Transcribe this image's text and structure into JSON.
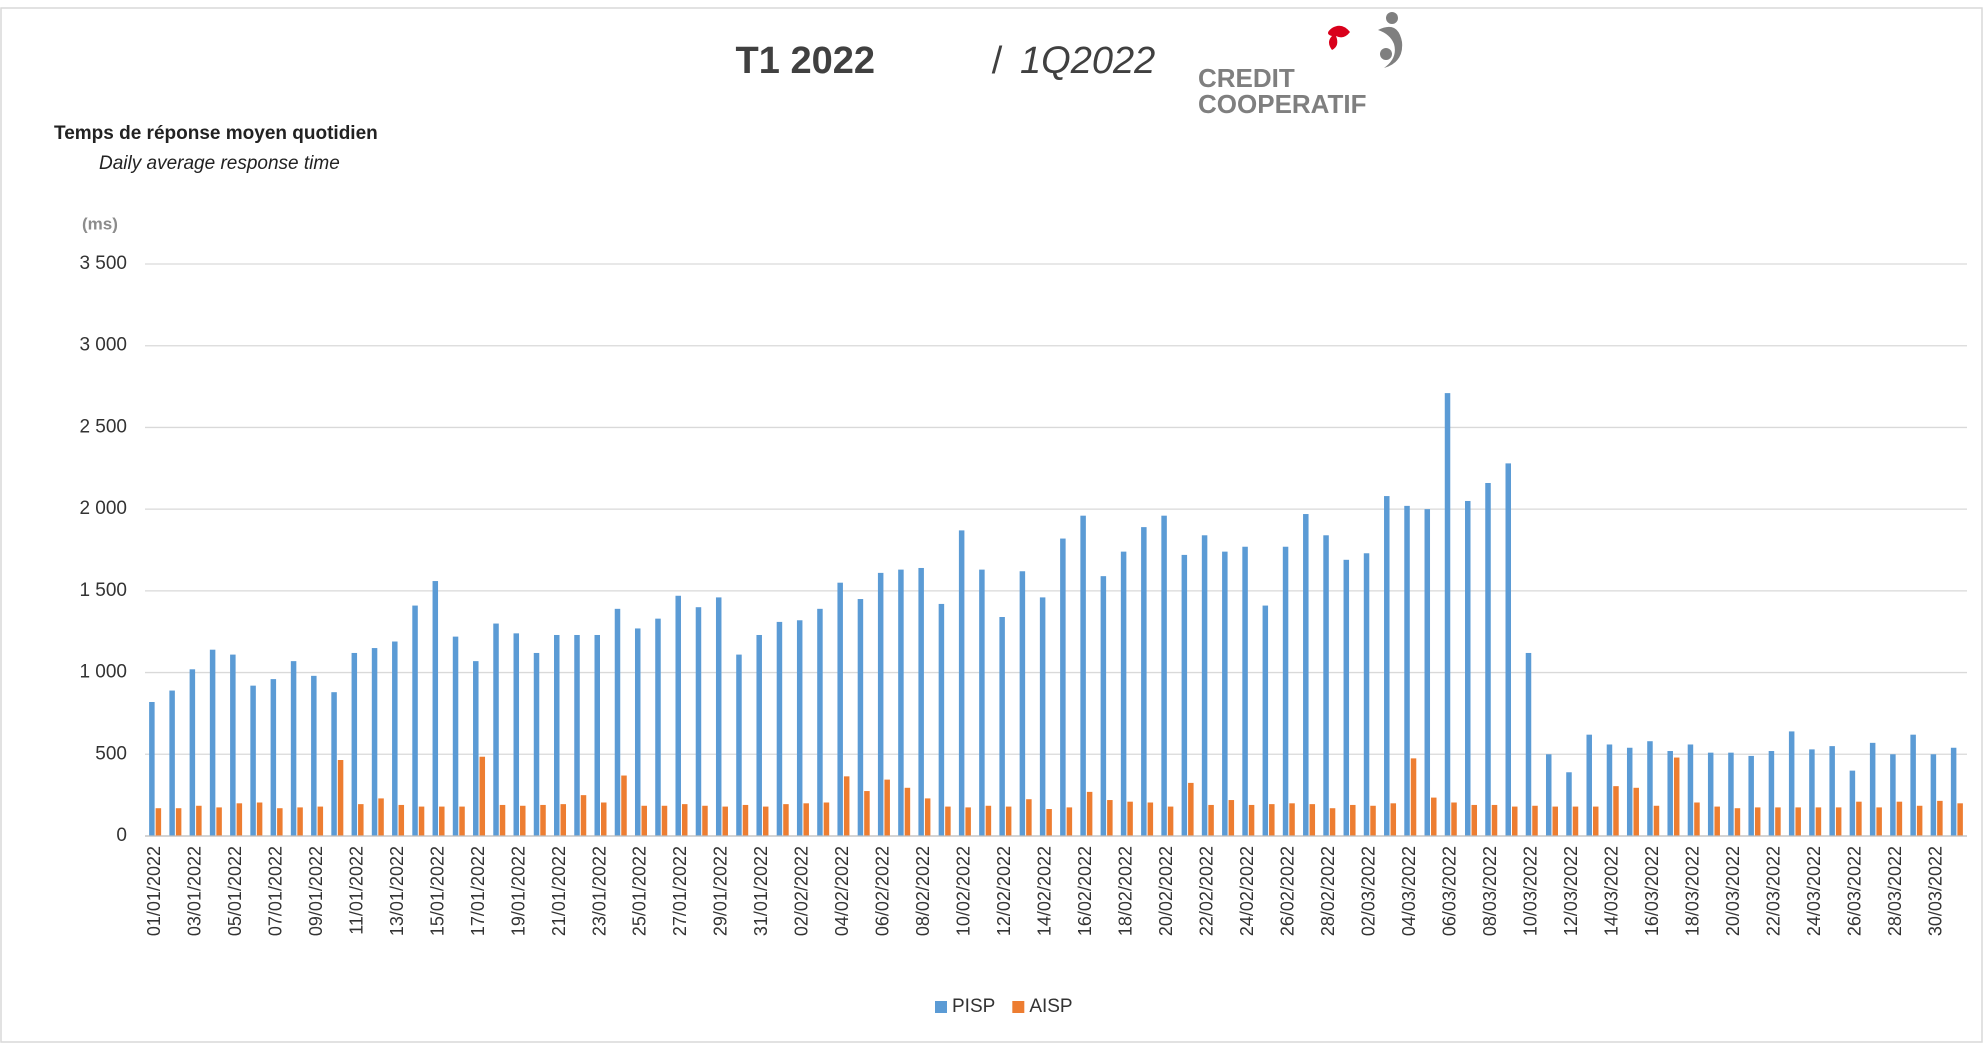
{
  "chart_data": {
    "type": "bar",
    "title": "T1 2022",
    "title_separator": "/",
    "title_alt": "1Q2022",
    "logo": [
      "CREDIT",
      "COOPERATIF"
    ],
    "subtitle": "Temps de réponse moyen quotidien",
    "subtitle_alt": "Daily average response time",
    "y_label": "(ms)",
    "categories": [
      "01/01/2022",
      null,
      "03/01/2022",
      null,
      "05/01/2022",
      null,
      "07/01/2022",
      null,
      "09/01/2022",
      null,
      "11/01/2022",
      null,
      "13/01/2022",
      null,
      "15/01/2022",
      null,
      "17/01/2022",
      null,
      "19/01/2022",
      null,
      "21/01/2022",
      null,
      "23/01/2022",
      null,
      "25/01/2022",
      null,
      "27/01/2022",
      null,
      "29/01/2022",
      null,
      "31/01/2022",
      null,
      "02/02/2022",
      null,
      "04/02/2022",
      null,
      "06/02/2022",
      null,
      "08/02/2022",
      null,
      "10/02/2022",
      null,
      "12/02/2022",
      null,
      "14/02/2022",
      null,
      "16/02/2022",
      null,
      "18/02/2022",
      null,
      "20/02/2022",
      null,
      "22/02/2022",
      null,
      "24/02/2022",
      null,
      "26/02/2022",
      null,
      "28/02/2022",
      null,
      "02/03/2022",
      null,
      "04/03/2022",
      null,
      "06/03/2022",
      null,
      "08/03/2022",
      null,
      "10/03/2022",
      null,
      "12/03/2022",
      null,
      "14/03/2022",
      null,
      "16/03/2022",
      null,
      "18/03/2022",
      null,
      "20/03/2022",
      null,
      "22/03/2022",
      null,
      "24/03/2022",
      null,
      "26/03/2022",
      null,
      "28/03/2022",
      null,
      "30/03/2022",
      null
    ],
    "series": [
      {
        "name": "PISP",
        "color": "#5b9bd5",
        "values": [
          820,
          890,
          1020,
          1140,
          1110,
          920,
          960,
          1070,
          980,
          880,
          1120,
          1150,
          1190,
          1410,
          1560,
          1220,
          1070,
          1300,
          1240,
          1120,
          1230,
          1230,
          1230,
          1390,
          1270,
          1330,
          1470,
          1400,
          1460,
          1110,
          1230,
          1310,
          1320,
          1390,
          1550,
          1450,
          1610,
          1630,
          1640,
          1420,
          1870,
          1630,
          1340,
          1620,
          1460,
          1820,
          1960,
          1590,
          1740,
          1890,
          1960,
          1720,
          1840,
          1740,
          1770,
          1410,
          1770,
          1970,
          1840,
          1690,
          1730,
          2080,
          2020,
          2000,
          2710,
          2050,
          2160,
          2280,
          1120,
          500,
          390,
          620,
          560,
          540,
          580,
          520,
          560,
          510,
          510,
          490,
          520,
          640,
          530,
          550,
          400,
          570,
          500,
          620,
          500,
          540
        ]
      },
      {
        "name": "AISP",
        "color": "#ed7d31",
        "values": [
          170,
          170,
          185,
          175,
          200,
          205,
          170,
          175,
          180,
          465,
          195,
          230,
          190,
          180,
          180,
          180,
          485,
          190,
          185,
          190,
          195,
          250,
          205,
          370,
          185,
          185,
          195,
          185,
          180,
          190,
          180,
          195,
          200,
          205,
          365,
          275,
          345,
          295,
          230,
          180,
          175,
          185,
          180,
          225,
          165,
          175,
          270,
          220,
          210,
          205,
          180,
          325,
          190,
          220,
          190,
          195,
          200,
          195,
          170,
          190,
          185,
          200,
          475,
          235,
          205,
          190,
          190,
          180,
          185,
          180,
          180,
          180,
          305,
          295,
          185,
          480,
          205,
          180,
          170,
          175,
          175,
          175,
          175,
          175,
          210,
          175,
          210,
          185,
          215,
          200
        ]
      }
    ],
    "ylim": [
      0,
      3500
    ],
    "yticks": [
      0,
      {
        "value": 500,
        "label": "500"
      },
      {
        "value": 1000,
        "label": "1 000"
      },
      {
        "value": 1500,
        "label": "1 500"
      },
      {
        "value": 2000,
        "label": "2 000"
      },
      {
        "value": 2500,
        "label": "2 500"
      },
      {
        "value": 3000,
        "label": "3 000"
      },
      {
        "value": 3500,
        "label": "3 500"
      }
    ],
    "grid": true,
    "legend": "bottom"
  }
}
